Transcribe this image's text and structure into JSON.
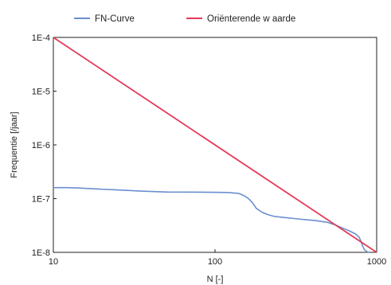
{
  "chart_data": {
    "type": "line",
    "x_scale": "log",
    "y_scale": "log",
    "xlim": [
      10,
      1000
    ],
    "ylim": [
      1e-08,
      0.0001
    ],
    "xlabel": "N [-]",
    "ylabel": "Frequentie [/jaar]",
    "grid": false,
    "legend_position": "top",
    "x_ticks": [
      10,
      100,
      1000
    ],
    "x_tick_labels": [
      "10",
      "100",
      "1000"
    ],
    "y_ticks": [
      1e-08,
      1e-07,
      1e-06,
      1e-05,
      0.0001
    ],
    "y_tick_labels": [
      "1E-8",
      "1E-7",
      "1E-6",
      "1E-5",
      "1E-4"
    ],
    "series": [
      {
        "name": "FN-Curve",
        "color": "#6a8fd0",
        "x": [
          10,
          12,
          14,
          18,
          25,
          35,
          50,
          70,
          100,
          120,
          140,
          150,
          160,
          170,
          180,
          195,
          210,
          230,
          260,
          300,
          350,
          420,
          500,
          560,
          620,
          680,
          740,
          780,
          800,
          820,
          840,
          870,
          900
        ],
        "y": [
          1.6e-07,
          1.6e-07,
          1.58e-07,
          1.52e-07,
          1.45e-07,
          1.38e-07,
          1.33e-07,
          1.32e-07,
          1.31e-07,
          1.3e-07,
          1.25e-07,
          1.15e-07,
          1.02e-07,
          8.5e-08,
          6.6e-08,
          5.6e-08,
          5.1e-08,
          4.7e-08,
          4.5e-08,
          4.3e-08,
          4.1e-08,
          3.9e-08,
          3.6e-08,
          3.2e-08,
          2.8e-08,
          2.5e-08,
          2.2e-08,
          1.9e-08,
          1.6e-08,
          1.3e-08,
          1.12e-08,
          1.03e-08,
          1e-08
        ]
      },
      {
        "name": "Oriënterende w aarde",
        "color": "#e23b58",
        "x": [
          10,
          1000
        ],
        "y": [
          0.0001,
          1e-08
        ]
      }
    ]
  }
}
